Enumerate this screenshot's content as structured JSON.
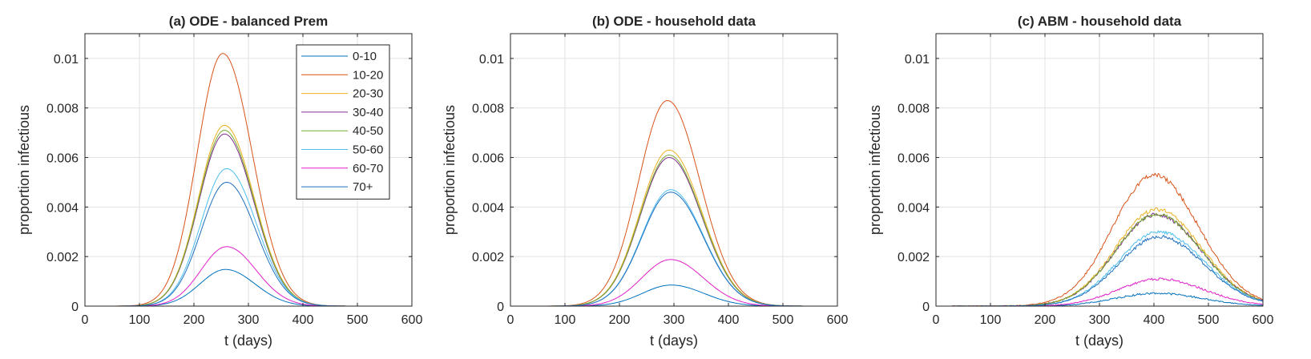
{
  "chart_data": [
    {
      "type": "line",
      "title": "(a) ODE - balanced Prem",
      "xlabel": "t (days)",
      "ylabel": "proportion infectious",
      "xlim": [
        0,
        600
      ],
      "ylim": [
        0,
        0.011
      ],
      "xticks": [
        0,
        100,
        200,
        300,
        400,
        500,
        600
      ],
      "yticks": [
        0,
        0.002,
        0.004,
        0.006,
        0.008,
        0.01
      ],
      "ytick_labels": [
        "0",
        "0.002",
        "0.004",
        "0.006",
        "0.008",
        "0.01"
      ],
      "grid": true,
      "legend": "top-right",
      "curve_shape": "gaussian",
      "series": [
        {
          "name": "0-10",
          "color": "#0072BD",
          "peak_t": 258,
          "peak": 0.00148,
          "sigma_left": 47,
          "sigma_right": 54,
          "noise": 0
        },
        {
          "name": "10-20",
          "color": "#D95319",
          "peak_t": 253,
          "peak": 0.0102,
          "sigma_left": 47,
          "sigma_right": 54,
          "noise": 0
        },
        {
          "name": "20-30",
          "color": "#EDB120",
          "peak_t": 256,
          "peak": 0.0073,
          "sigma_left": 47,
          "sigma_right": 54,
          "noise": 0
        },
        {
          "name": "30-40",
          "color": "#7E2F8E",
          "peak_t": 256,
          "peak": 0.00695,
          "sigma_left": 47,
          "sigma_right": 54,
          "noise": 0
        },
        {
          "name": "40-50",
          "color": "#77AC30",
          "peak_t": 256,
          "peak": 0.0071,
          "sigma_left": 47,
          "sigma_right": 54,
          "noise": 0
        },
        {
          "name": "50-60",
          "color": "#4DBEEE",
          "peak_t": 260,
          "peak": 0.00555,
          "sigma_left": 47,
          "sigma_right": 54,
          "noise": 0
        },
        {
          "name": "60-70",
          "color": "#E020C8",
          "peak_t": 260,
          "peak": 0.0024,
          "sigma_left": 47,
          "sigma_right": 54,
          "noise": 0
        },
        {
          "name": "70+",
          "color": "#2070C0",
          "peak_t": 260,
          "peak": 0.005,
          "sigma_left": 47,
          "sigma_right": 54,
          "noise": 0
        }
      ]
    },
    {
      "type": "line",
      "title": "(b) ODE - household data",
      "xlabel": "t (days)",
      "ylabel": "proportion infectious",
      "xlim": [
        0,
        600
      ],
      "ylim": [
        0,
        0.011
      ],
      "xticks": [
        0,
        100,
        200,
        300,
        400,
        500,
        600
      ],
      "yticks": [
        0,
        0.002,
        0.004,
        0.006,
        0.008,
        0.01
      ],
      "ytick_labels": [
        "0",
        "0.002",
        "0.004",
        "0.006",
        "0.008",
        "0.01"
      ],
      "grid": true,
      "curve_shape": "gaussian",
      "series": [
        {
          "color": "#0072BD",
          "peak_t": 295,
          "peak": 0.00085,
          "sigma_left": 53,
          "sigma_right": 60,
          "noise": 0
        },
        {
          "color": "#D95319",
          "peak_t": 288,
          "peak": 0.0083,
          "sigma_left": 53,
          "sigma_right": 60,
          "noise": 0
        },
        {
          "color": "#EDB120",
          "peak_t": 291,
          "peak": 0.0063,
          "sigma_left": 53,
          "sigma_right": 60,
          "noise": 0
        },
        {
          "color": "#7E2F8E",
          "peak_t": 291,
          "peak": 0.006,
          "sigma_left": 53,
          "sigma_right": 60,
          "noise": 0
        },
        {
          "color": "#77AC30",
          "peak_t": 291,
          "peak": 0.0061,
          "sigma_left": 53,
          "sigma_right": 60,
          "noise": 0
        },
        {
          "color": "#4DBEEE",
          "peak_t": 294,
          "peak": 0.0047,
          "sigma_left": 53,
          "sigma_right": 60,
          "noise": 0
        },
        {
          "color": "#E020C8",
          "peak_t": 294,
          "peak": 0.00188,
          "sigma_left": 53,
          "sigma_right": 60,
          "noise": 0
        },
        {
          "color": "#2070C0",
          "peak_t": 294,
          "peak": 0.0046,
          "sigma_left": 53,
          "sigma_right": 60,
          "noise": 0
        }
      ]
    },
    {
      "type": "line",
      "title": "(c) ABM - household data",
      "xlabel": "t (days)",
      "ylabel": "proportion infectious",
      "xlim": [
        0,
        600
      ],
      "ylim": [
        0,
        0.011
      ],
      "xticks": [
        0,
        100,
        200,
        300,
        400,
        500,
        600
      ],
      "yticks": [
        0,
        0.002,
        0.004,
        0.006,
        0.008,
        0.01
      ],
      "ytick_labels": [
        "0",
        "0.002",
        "0.004",
        "0.006",
        "0.008",
        "0.01"
      ],
      "grid": true,
      "curve_shape": "gaussian",
      "series": [
        {
          "color": "#0072BD",
          "peak_t": 405,
          "peak": 0.00052,
          "sigma_left": 75,
          "sigma_right": 82,
          "noise": 4e-05
        },
        {
          "color": "#D95319",
          "peak_t": 400,
          "peak": 0.0053,
          "sigma_left": 75,
          "sigma_right": 82,
          "noise": 9e-05
        },
        {
          "color": "#EDB120",
          "peak_t": 405,
          "peak": 0.0039,
          "sigma_left": 75,
          "sigma_right": 82,
          "noise": 8e-05
        },
        {
          "color": "#7E2F8E",
          "peak_t": 405,
          "peak": 0.0037,
          "sigma_left": 75,
          "sigma_right": 82,
          "noise": 8e-05
        },
        {
          "color": "#77AC30",
          "peak_t": 405,
          "peak": 0.0037,
          "sigma_left": 75,
          "sigma_right": 82,
          "noise": 8e-05
        },
        {
          "color": "#4DBEEE",
          "peak_t": 410,
          "peak": 0.003,
          "sigma_left": 75,
          "sigma_right": 82,
          "noise": 7e-05
        },
        {
          "color": "#E020C8",
          "peak_t": 410,
          "peak": 0.0011,
          "sigma_left": 75,
          "sigma_right": 82,
          "noise": 5e-05
        },
        {
          "color": "#2070C0",
          "peak_t": 410,
          "peak": 0.0028,
          "sigma_left": 75,
          "sigma_right": 82,
          "noise": 7e-05
        }
      ]
    }
  ]
}
